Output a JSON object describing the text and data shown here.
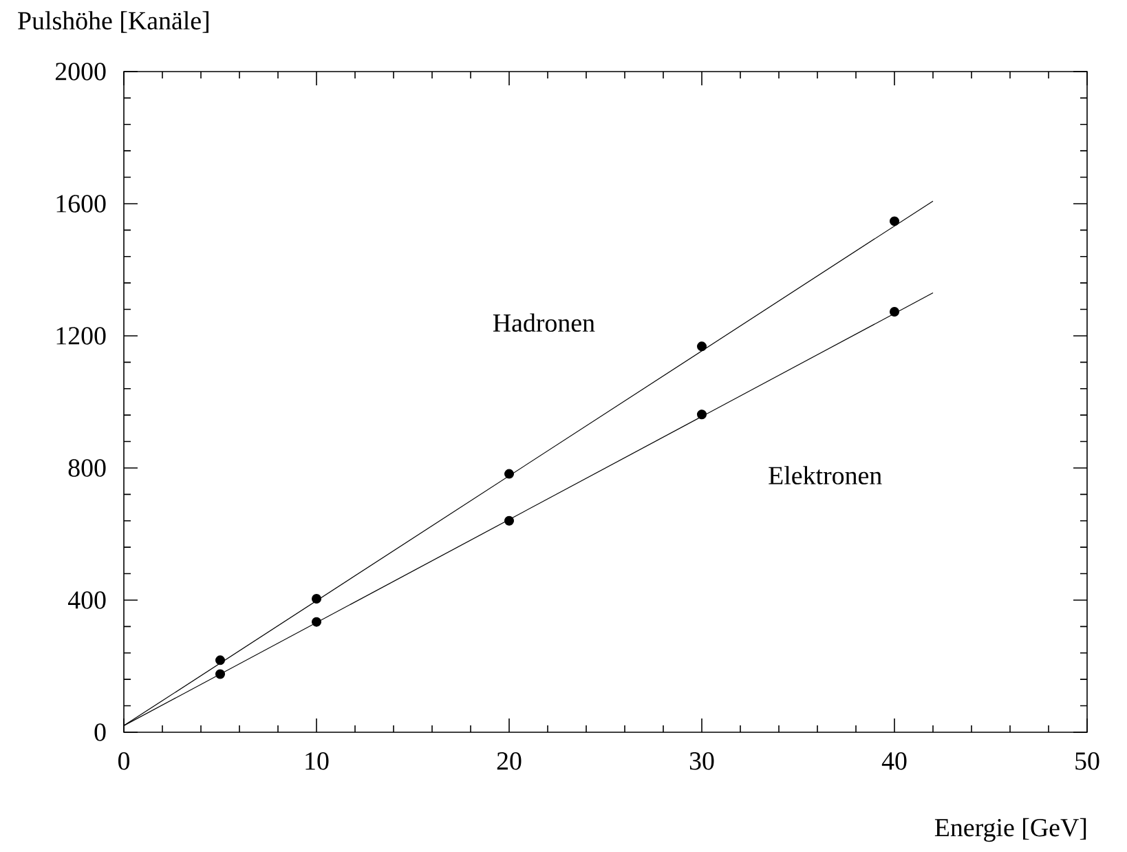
{
  "chart_data": {
    "type": "scatter",
    "xlabel": "Energie [GeV]",
    "ylabel": "Pulshöhe [Kanäle]",
    "xlim": [
      0,
      50
    ],
    "ylim": [
      0,
      2000
    ],
    "xticks": [
      0,
      10,
      20,
      30,
      40,
      50
    ],
    "yticks": [
      0,
      400,
      800,
      1200,
      1600,
      2000
    ],
    "grid": false,
    "series": [
      {
        "color": "#000000",
        "marker": "circle",
        "x": [
          5,
          10,
          20,
          30,
          40
        ],
        "values": [
          218,
          404,
          782,
          1168,
          1547
        ]
      },
      {
        "color": "#000000",
        "marker": "circle",
        "x": [
          5,
          10,
          20,
          30,
          40
        ],
        "values": [
          176,
          334,
          640,
          962,
          1273
        ]
      },
      {
        "type": "line",
        "color": "#000000",
        "x": [
          0,
          42
        ],
        "values": [
          20,
          1608
        ],
        "marker": "none"
      },
      {
        "type": "line",
        "color": "#000000",
        "x": [
          0,
          42
        ],
        "values": [
          20,
          1330
        ],
        "marker": "none"
      }
    ],
    "annotations": [
      "Hadronen",
      "Elektronen"
    ]
  }
}
